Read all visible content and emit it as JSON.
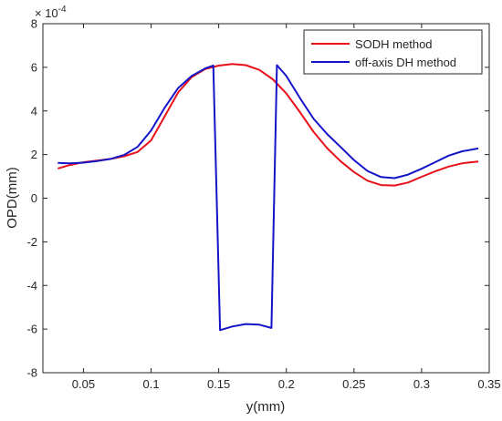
{
  "chart_data": {
    "type": "line",
    "xlabel": "y(mm)",
    "ylabel": "OPD(mm)",
    "xlim": [
      0.02,
      0.35
    ],
    "ylim": [
      -8,
      8
    ],
    "x_ticks": [
      0.05,
      0.1,
      0.15,
      0.2,
      0.25,
      0.3,
      0.35
    ],
    "y_ticks": [
      -8,
      -6,
      -4,
      -2,
      0,
      2,
      4,
      6,
      8
    ],
    "y_tick_labels": [
      "-8",
      "-6",
      "-4",
      "-2",
      "0",
      "2",
      "4",
      "6",
      "8"
    ],
    "x_tick_labels": [
      "0.05",
      "0.1",
      "0.15",
      "0.2",
      "0.25",
      "0.3",
      "0.35"
    ],
    "y_scale_exponent": {
      "base": "× 10",
      "power": "-4"
    },
    "y_scale_note": "values in units of 1e-4 mm",
    "grid": false,
    "box": true,
    "legend_position": "top-right",
    "series": [
      {
        "name": "SODH method",
        "color": "#e8101a",
        "points": [
          [
            0.031,
            1.36
          ],
          [
            0.04,
            1.52
          ],
          [
            0.05,
            1.65
          ],
          [
            0.06,
            1.72
          ],
          [
            0.07,
            1.8
          ],
          [
            0.08,
            1.92
          ],
          [
            0.09,
            2.12
          ],
          [
            0.1,
            2.65
          ],
          [
            0.11,
            3.75
          ],
          [
            0.12,
            4.85
          ],
          [
            0.13,
            5.55
          ],
          [
            0.14,
            5.92
          ],
          [
            0.15,
            6.08
          ],
          [
            0.16,
            6.15
          ],
          [
            0.17,
            6.1
          ],
          [
            0.18,
            5.88
          ],
          [
            0.19,
            5.45
          ],
          [
            0.2,
            4.8
          ],
          [
            0.21,
            3.95
          ],
          [
            0.22,
            3.05
          ],
          [
            0.23,
            2.3
          ],
          [
            0.24,
            1.7
          ],
          [
            0.25,
            1.2
          ],
          [
            0.26,
            0.8
          ],
          [
            0.27,
            0.6
          ],
          [
            0.28,
            0.58
          ],
          [
            0.29,
            0.72
          ],
          [
            0.3,
            0.98
          ],
          [
            0.31,
            1.23
          ],
          [
            0.32,
            1.45
          ],
          [
            0.33,
            1.6
          ],
          [
            0.342,
            1.68
          ]
        ]
      },
      {
        "name": "off-axis DH method",
        "color": "#1414c8",
        "points": [
          [
            0.031,
            1.62
          ],
          [
            0.04,
            1.6
          ],
          [
            0.05,
            1.63
          ],
          [
            0.06,
            1.7
          ],
          [
            0.07,
            1.8
          ],
          [
            0.08,
            1.98
          ],
          [
            0.09,
            2.35
          ],
          [
            0.1,
            3.1
          ],
          [
            0.11,
            4.15
          ],
          [
            0.12,
            5.05
          ],
          [
            0.13,
            5.6
          ],
          [
            0.14,
            5.95
          ],
          [
            0.146,
            6.08
          ],
          [
            0.151,
            -6.05
          ],
          [
            0.16,
            -5.88
          ],
          [
            0.17,
            -5.77
          ],
          [
            0.18,
            -5.8
          ],
          [
            0.189,
            -5.95
          ],
          [
            0.193,
            6.1
          ],
          [
            0.2,
            5.6
          ],
          [
            0.21,
            4.6
          ],
          [
            0.22,
            3.65
          ],
          [
            0.23,
            2.95
          ],
          [
            0.24,
            2.35
          ],
          [
            0.25,
            1.75
          ],
          [
            0.26,
            1.25
          ],
          [
            0.27,
            0.97
          ],
          [
            0.28,
            0.92
          ],
          [
            0.29,
            1.08
          ],
          [
            0.3,
            1.35
          ],
          [
            0.31,
            1.65
          ],
          [
            0.32,
            1.95
          ],
          [
            0.33,
            2.15
          ],
          [
            0.342,
            2.28
          ]
        ]
      }
    ]
  }
}
